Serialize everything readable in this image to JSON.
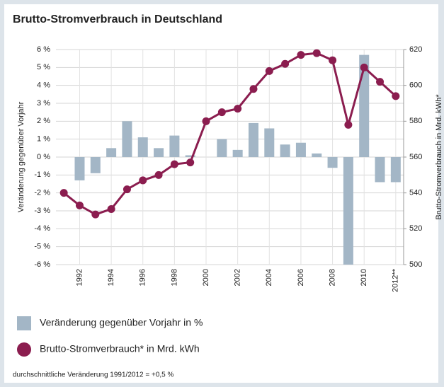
{
  "chart_data": {
    "type": "combo",
    "title": "Brutto-Stromverbrauch in Deutschland",
    "y_label": "Veränderung gegenüber Vorjahr",
    "y2_label": "Brutto-Stromverbrauch in Mrd. kWh*",
    "categories": [
      null,
      "1992",
      null,
      "1994",
      null,
      "1996",
      null,
      "1998",
      null,
      "2000",
      null,
      "2002",
      null,
      "2004",
      null,
      "2006",
      null,
      "2008",
      null,
      "2010",
      null,
      "2012**"
    ],
    "series": [
      {
        "name": "Veränderung gegenüber Vorjahr in %",
        "type": "bar",
        "axis": "y",
        "color": "#a3b6c6",
        "values": [
          null,
          -1.3,
          -0.9,
          0.5,
          2.0,
          1.1,
          0.5,
          1.2,
          0.1,
          0,
          1.0,
          0.4,
          1.9,
          1.6,
          0.7,
          0.8,
          0.2,
          -0.6,
          -6,
          5.7,
          -1.4,
          -1.4
        ]
      },
      {
        "name": "Brutto-Stromverbrauch* in Mrd. kWh",
        "type": "line",
        "axis": "y2",
        "color": "#8b1d4f",
        "values": [
          540,
          533,
          528,
          531,
          542,
          547,
          550,
          556,
          557,
          580,
          585,
          587,
          598,
          608,
          612,
          617,
          618,
          614,
          578,
          610,
          602,
          594
        ]
      }
    ],
    "ylim": [
      -6,
      6
    ],
    "yticks": [
      {
        "value": -6,
        "label": "-6 %"
      },
      {
        "value": -5,
        "label": "-5 %"
      },
      {
        "value": -4,
        "label": "-4 %"
      },
      {
        "value": -3,
        "label": "-3 %"
      },
      {
        "value": -2,
        "label": "-2 %"
      },
      {
        "value": -1,
        "label": "-1 %"
      },
      {
        "value": 0,
        "label": "0 %"
      },
      {
        "value": 1,
        "label": "1 %"
      },
      {
        "value": 2,
        "label": "2 %"
      },
      {
        "value": 3,
        "label": "3 %"
      },
      {
        "value": 4,
        "label": "4 %"
      },
      {
        "value": 5,
        "label": "5 %"
      },
      {
        "value": 6,
        "label": "6 %"
      }
    ],
    "y2lim": [
      500,
      620
    ],
    "y2ticks": [
      500,
      520,
      540,
      560,
      580,
      600,
      620
    ],
    "grid": true,
    "footnote": "durchschnittliche Veränderung 1991/2012 = +0,5 %"
  }
}
